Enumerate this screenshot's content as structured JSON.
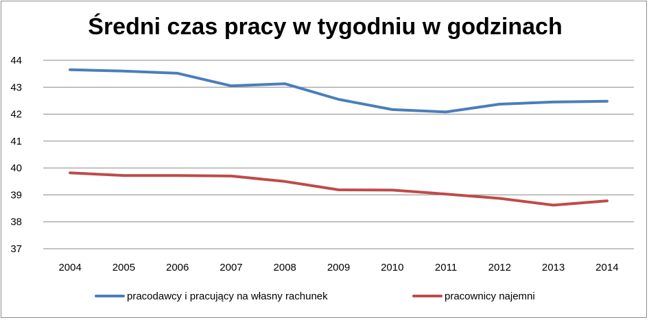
{
  "chart_data": {
    "type": "line",
    "title": "Średni czas pracy w tygodniu w godzinach",
    "xlabel": "",
    "ylabel": "",
    "categories": [
      "2004",
      "2005",
      "2006",
      "2007",
      "2008",
      "2009",
      "2010",
      "2011",
      "2012",
      "2013",
      "2014"
    ],
    "ylim": [
      37,
      44
    ],
    "yticks": [
      "37",
      "38",
      "39",
      "40",
      "41",
      "42",
      "43",
      "44"
    ],
    "grid": true,
    "legend_position": "bottom",
    "series": [
      {
        "name": "pracodawcy i pracujący na własny rachunek",
        "color": "#4a7ebb",
        "values": [
          43.65,
          43.6,
          43.52,
          43.05,
          43.13,
          42.55,
          42.17,
          42.08,
          42.37,
          42.45,
          42.48
        ]
      },
      {
        "name": "pracownicy najemni",
        "color": "#be4b48",
        "values": [
          39.82,
          39.72,
          39.72,
          39.7,
          39.5,
          39.19,
          39.18,
          39.03,
          38.87,
          38.62,
          38.78
        ]
      }
    ]
  }
}
